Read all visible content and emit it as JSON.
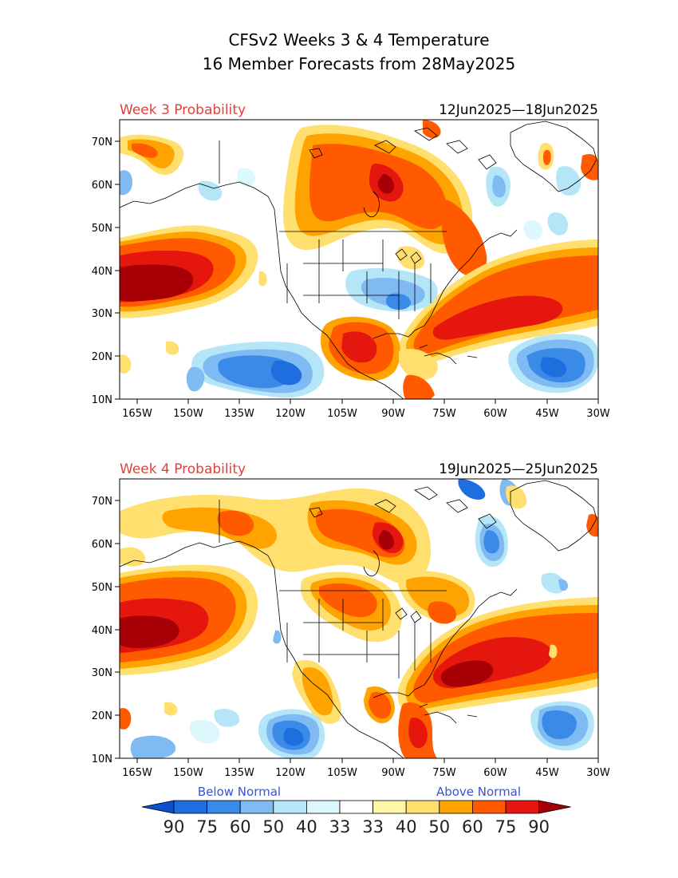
{
  "title": {
    "line1": "CFSv2 Weeks 3 & 4 Temperature",
    "line2": "16 Member Forecasts from 28May2025"
  },
  "panels": [
    {
      "label": "Week 3 Probability",
      "dates": "12Jun2025—18Jun2025",
      "label_color": "#e0403a"
    },
    {
      "label": "Week 4 Probability",
      "dates": "19Jun2025—25Jun2025",
      "label_color": "#e0403a"
    }
  ],
  "axes": {
    "x_ticks": [
      "165W",
      "150W",
      "135W",
      "120W",
      "105W",
      "90W",
      "75W",
      "60W",
      "45W",
      "30W"
    ],
    "y_ticks": [
      "70N",
      "60N",
      "50N",
      "40N",
      "30N",
      "20N",
      "10N"
    ],
    "lon_range": [
      -170,
      -30
    ],
    "lat_range": [
      10,
      75
    ]
  },
  "legend": {
    "below_label": "Below Normal",
    "above_label": "Above Normal",
    "below_color": "#3a52d4",
    "above_color": "#3a52d4",
    "tick_labels": [
      "90",
      "75",
      "60",
      "50",
      "40",
      "33",
      "33",
      "40",
      "50",
      "60",
      "75",
      "90"
    ],
    "bins": [
      {
        "color": "#0b4fd0"
      },
      {
        "color": "#1e6ee0"
      },
      {
        "color": "#3a8ae8"
      },
      {
        "color": "#80baf2"
      },
      {
        "color": "#b4e6f8"
      },
      {
        "color": "#dcf8fc"
      },
      {
        "color": "#ffffff"
      },
      {
        "color": "#fff6a8"
      },
      {
        "color": "#ffdf6e"
      },
      {
        "color": "#ffa300"
      },
      {
        "color": "#ff5a00"
      },
      {
        "color": "#e4160e"
      },
      {
        "color": "#a60006"
      }
    ]
  }
}
